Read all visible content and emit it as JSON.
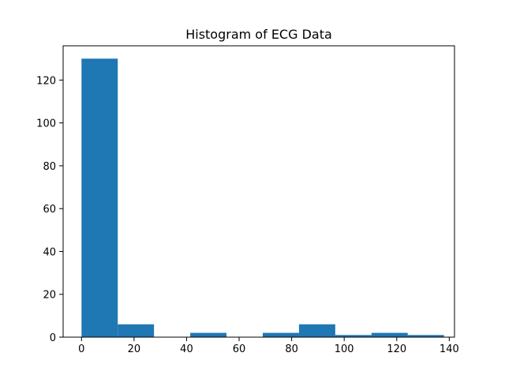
{
  "chart_data": {
    "type": "histogram",
    "title": "Histogram of ECG Data",
    "xlabel": "",
    "ylabel": "",
    "bin_edges": [
      0,
      13.8,
      27.6,
      41.4,
      55.2,
      69.0,
      82.8,
      96.6,
      110.4,
      124.2,
      138.0
    ],
    "counts": [
      130,
      6,
      0,
      2,
      0,
      2,
      6,
      1,
      2,
      1
    ],
    "xlim": [
      -7,
      142
    ],
    "ylim": [
      0,
      136
    ],
    "xticks": [
      0,
      20,
      40,
      60,
      80,
      100,
      120,
      140
    ],
    "yticks": [
      0,
      20,
      40,
      60,
      80,
      100,
      120
    ],
    "grid": false,
    "bar_color": "#1f77b4"
  }
}
